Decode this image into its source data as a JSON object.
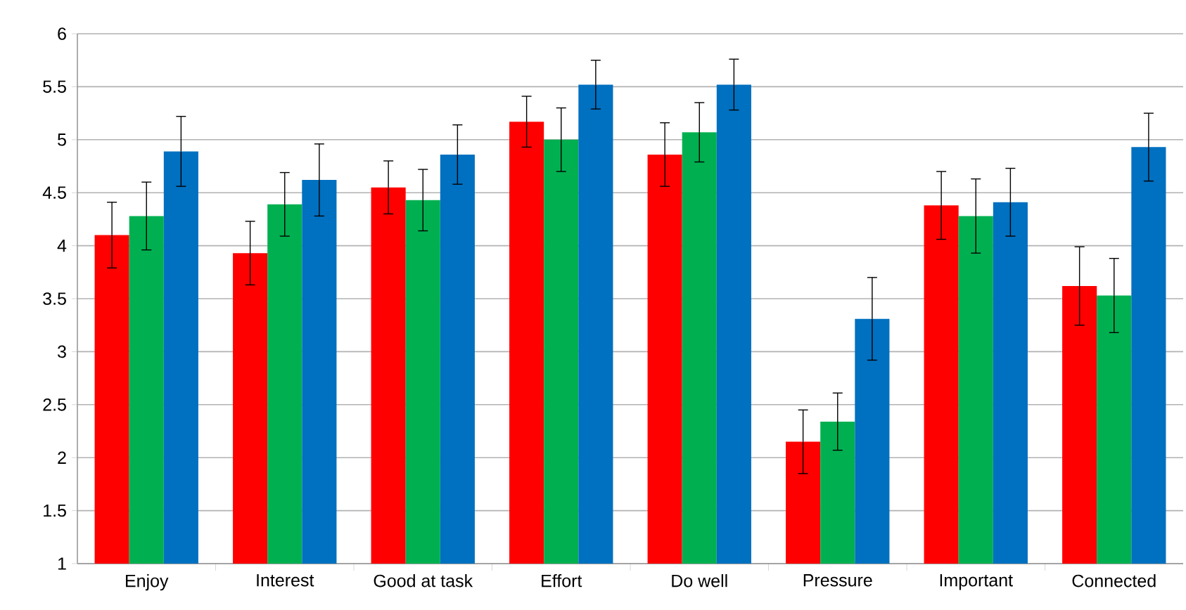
{
  "chart_data": {
    "type": "bar",
    "categories": [
      "Enjoy",
      "Interest",
      "Good at task",
      "Effort",
      "Do well",
      "Pressure",
      "Important",
      "Connected"
    ],
    "series": [
      {
        "color": "#ff0000",
        "values": [
          4.1,
          3.93,
          4.55,
          5.17,
          4.86,
          2.15,
          4.38,
          3.62
        ],
        "errors": [
          0.31,
          0.3,
          0.25,
          0.24,
          0.3,
          0.3,
          0.32,
          0.37
        ]
      },
      {
        "color": "#00b050",
        "values": [
          4.28,
          4.39,
          4.43,
          5.0,
          5.07,
          2.34,
          4.28,
          3.53
        ],
        "errors": [
          0.32,
          0.3,
          0.29,
          0.3,
          0.28,
          0.27,
          0.35,
          0.35
        ]
      },
      {
        "color": "#0070c0",
        "values": [
          4.89,
          4.62,
          4.86,
          5.52,
          5.52,
          3.31,
          4.41,
          4.93
        ],
        "errors": [
          0.33,
          0.34,
          0.28,
          0.23,
          0.24,
          0.39,
          0.32,
          0.32
        ]
      }
    ],
    "ylim": [
      1,
      6
    ],
    "yticks": [
      1,
      1.5,
      2,
      2.5,
      3,
      3.5,
      4,
      4.5,
      5,
      5.5,
      6
    ],
    "grid": "y"
  }
}
